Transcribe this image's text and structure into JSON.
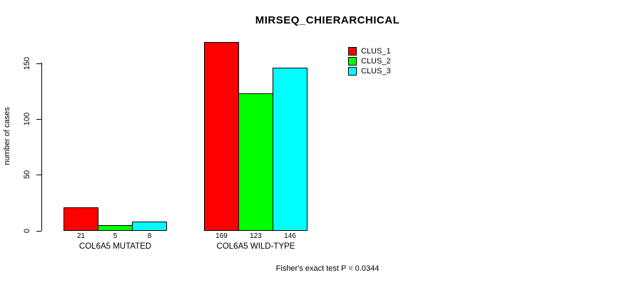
{
  "chart_data": {
    "type": "bar",
    "title": "MIRSEQ_CHIERARCHICAL",
    "ylabel": "number of cases",
    "xlabel": "",
    "categories": [
      "COL6A5 MUTATED",
      "COL6A5 WILD-TYPE"
    ],
    "series": [
      {
        "name": "CLUS_1",
        "color": "#ff0000",
        "values": [
          21,
          169
        ]
      },
      {
        "name": "CLUS_2",
        "color": "#00ff00",
        "values": [
          5,
          123
        ]
      },
      {
        "name": "CLUS_3",
        "color": "#00ffff",
        "values": [
          8,
          146
        ]
      }
    ],
    "yticks": [
      0,
      50,
      100,
      150
    ],
    "ylim": [
      0,
      169
    ],
    "grid": false,
    "legend_position": "top-right",
    "bar_border_color": "#000000",
    "background_color": "#ffffff",
    "annotation": "Fisher's exact test P = 0.0344"
  }
}
